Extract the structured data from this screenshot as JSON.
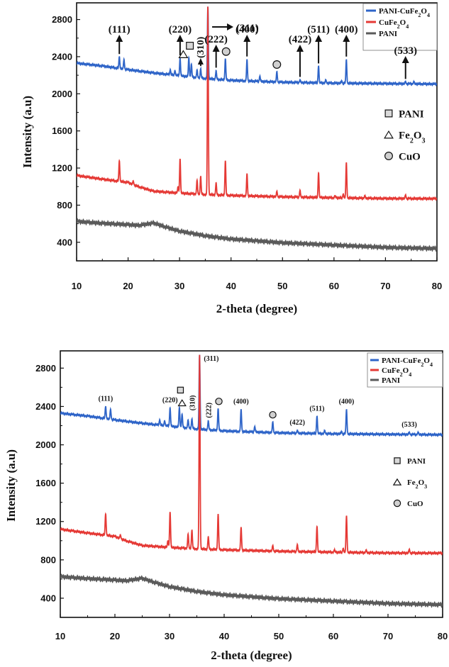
{
  "chart_data": [
    {
      "type": "line",
      "xlabel": "2-theta (degree)",
      "ylabel": "Intensity (a.u)",
      "xlim": [
        10,
        80
      ],
      "ylim": [
        200,
        2980
      ],
      "xticks": [
        10,
        20,
        30,
        40,
        50,
        60,
        70,
        80
      ],
      "yticks": [
        400,
        800,
        1200,
        1600,
        2000,
        2400,
        2800
      ],
      "legend_position": "top-right",
      "series": [
        {
          "name": "PANI-CuFe2O4",
          "color": "#2e64c8",
          "baseline": [
            [
              10,
              2330
            ],
            [
              15,
              2300
            ],
            [
              20,
              2260
            ],
            [
              25,
              2225
            ],
            [
              30,
              2195
            ],
            [
              35,
              2165
            ],
            [
              40,
              2145
            ],
            [
              50,
              2125
            ],
            [
              60,
              2115
            ],
            [
              70,
              2110
            ],
            [
              80,
              2105
            ]
          ],
          "peaks": [
            [
              18.3,
              2400
            ],
            [
              19.2,
              2370
            ],
            [
              28.2,
              2260
            ],
            [
              29.1,
              2250
            ],
            [
              30.1,
              2385
            ],
            [
              31.8,
              2390
            ],
            [
              32.3,
              2320
            ],
            [
              33.4,
              2260
            ],
            [
              34.1,
              2270
            ],
            [
              35.5,
              2940
            ],
            [
              37.1,
              2250
            ],
            [
              38.9,
              2380
            ],
            [
              43.1,
              2370
            ],
            [
              45.6,
              2190
            ],
            [
              48.9,
              2240
            ],
            [
              53.4,
              2150
            ],
            [
              57.0,
              2300
            ],
            [
              58.4,
              2150
            ],
            [
              61.5,
              2140
            ],
            [
              62.4,
              2370
            ],
            [
              73.9,
              2130
            ],
            [
              75.5,
              2130
            ]
          ]
        },
        {
          "name": "CuFe2O4",
          "color": "#e53935",
          "baseline": [
            [
              10,
              1120
            ],
            [
              15,
              1080
            ],
            [
              20,
              1045
            ],
            [
              22,
              1000
            ],
            [
              25,
              950
            ],
            [
              30,
              930
            ],
            [
              35,
              915
            ],
            [
              40,
              905
            ],
            [
              50,
              890
            ],
            [
              60,
              880
            ],
            [
              70,
              872
            ],
            [
              80,
              870
            ]
          ],
          "peaks": [
            [
              18.3,
              1280
            ],
            [
              21.0,
              1060
            ],
            [
              29.7,
              1000
            ],
            [
              30.1,
              1300
            ],
            [
              33.4,
              1070
            ],
            [
              34.1,
              1110
            ],
            [
              35.5,
              2940
            ],
            [
              37.1,
              1040
            ],
            [
              38.9,
              1280
            ],
            [
              43.1,
              1140
            ],
            [
              48.9,
              950
            ],
            [
              53.4,
              960
            ],
            [
              57.0,
              1150
            ],
            [
              60.2,
              905
            ],
            [
              61.8,
              920
            ],
            [
              62.4,
              1260
            ],
            [
              66.0,
              900
            ],
            [
              73.9,
              910
            ]
          ]
        },
        {
          "name": "PANI",
          "color": "#5a5a5a",
          "baseline": [
            [
              10,
              625
            ],
            [
              15,
              605
            ],
            [
              20,
              590
            ],
            [
              22,
              582
            ],
            [
              25,
              608
            ],
            [
              27,
              570
            ],
            [
              30,
              520
            ],
            [
              35,
              470
            ],
            [
              40,
              435
            ],
            [
              50,
              395
            ],
            [
              60,
              370
            ],
            [
              70,
              345
            ],
            [
              80,
              332
            ]
          ],
          "peaks": []
        }
      ],
      "annotations": [
        {
          "text": "(111)",
          "x": 18.3
        },
        {
          "text": "(220)",
          "x": 30.1
        },
        {
          "text": "(310)",
          "x": 34.1
        },
        {
          "text": "(311)",
          "x": 35.5
        },
        {
          "text": "(222)",
          "x": 37.1
        },
        {
          "text": "(400)",
          "x": 43.1
        },
        {
          "text": "(422)",
          "x": 53.4
        },
        {
          "text": "(511)",
          "x": 57.0
        },
        {
          "text": "(400)",
          "x": 62.4
        },
        {
          "text": "(533)",
          "x": 73.9
        }
      ],
      "phases": [
        {
          "symbol": "square",
          "label": "PANI"
        },
        {
          "symbol": "triangle",
          "label": "Fe2O3"
        },
        {
          "symbol": "circle",
          "label": "CuO"
        }
      ]
    },
    {
      "type": "line",
      "xlabel": "2-theta (degree)",
      "ylabel": "Intensity (a.u)",
      "xlim": [
        10,
        80
      ],
      "ylim": [
        200,
        2980
      ],
      "xticks": [
        10,
        20,
        30,
        40,
        50,
        60,
        70,
        80
      ],
      "yticks": [
        400,
        800,
        1200,
        1600,
        2000,
        2400,
        2800
      ],
      "legend_position": "top-right",
      "series": [
        {
          "name": "PANI-CuFe2O4",
          "color": "#2e64c8"
        },
        {
          "name": "CuFe2O4",
          "color": "#e53935"
        },
        {
          "name": "PANI",
          "color": "#5a5a5a"
        }
      ],
      "annotations": [
        {
          "text": "(111)",
          "x": 18.3
        },
        {
          "text": "(220)",
          "x": 30.1
        },
        {
          "text": "(310)",
          "x": 34.1
        },
        {
          "text": "(311)",
          "x": 35.5
        },
        {
          "text": "(222)",
          "x": 37.1
        },
        {
          "text": "(400)",
          "x": 43.1
        },
        {
          "text": "(422)",
          "x": 53.4
        },
        {
          "text": "(511)",
          "x": 57.0
        },
        {
          "text": "(400)",
          "x": 62.4
        },
        {
          "text": "(533)",
          "x": 73.9
        }
      ],
      "phases": [
        {
          "symbol": "square",
          "label": "PANI"
        },
        {
          "symbol": "triangle",
          "label": "Fe2O3"
        },
        {
          "symbol": "circle",
          "label": "CuO"
        }
      ]
    }
  ]
}
